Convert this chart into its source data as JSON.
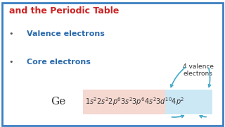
{
  "bg_color": "#ffffff",
  "border_color": "#3a7fc1",
  "title_text": "and the Periodic Table",
  "title_color": "#cc2222",
  "bullet1_text": "Valence electrons",
  "bullet2_text": "Core electrons",
  "bullet_color": "#2a6aad",
  "ge_label": "Ge",
  "ge_color": "#333333",
  "valence_label": "4 valence\nelectrons",
  "valence_label_color": "#333333",
  "config_math": "$1s^{2}2s^{2}2p^{6}3s^{2}3p^{6}4s^{2}3d^{10}4p^{2}$",
  "config_color": "#333333",
  "core_box_color": "#f5d8d0",
  "valence_box_color": "#cce8f5",
  "arrow_color": "#44aacc"
}
